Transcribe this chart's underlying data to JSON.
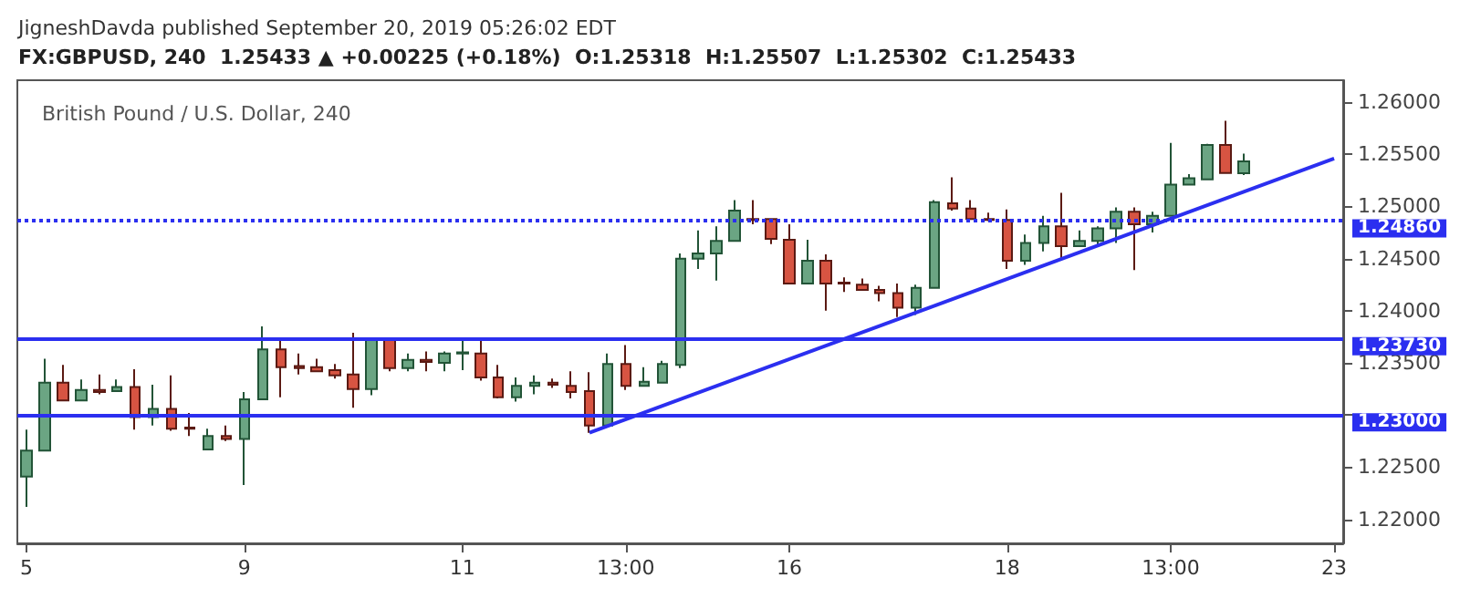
{
  "chart_data": {
    "type": "candlestick",
    "title": "British Pound / U.S. Dollar, 240",
    "annotations": [
      "JigneshDavda published September 20, 2019 05:26:02 EDT",
      "FX:GBPUSD, 240  1.25433 ▲ +0.00225 (+0.18%)  O:1.25318  H:1.25507  L:1.25302  C:1.25433"
    ],
    "categories": [
      "5",
      null,
      null,
      null,
      null,
      null,
      null,
      null,
      null,
      null,
      null,
      null,
      "9",
      null,
      null,
      null,
      null,
      null,
      null,
      null,
      null,
      null,
      null,
      null,
      "11",
      null,
      null,
      null,
      null,
      null,
      null,
      null,
      null,
      "13:00",
      null,
      null,
      null,
      null,
      null,
      null,
      null,
      null,
      "16",
      null,
      null,
      null,
      null,
      null,
      null,
      null,
      null,
      null,
      null,
      null,
      "18",
      null,
      null,
      null,
      null,
      null,
      null,
      null,
      null,
      "13:00",
      null,
      null,
      null,
      null,
      null,
      null,
      null,
      null,
      "23"
    ],
    "ohlc": [
      [
        1.2241,
        1.2286,
        1.2212,
        1.2266
      ],
      [
        1.2266,
        1.2354,
        1.2266,
        1.2331
      ],
      [
        1.2331,
        1.2348,
        1.2314,
        1.2314
      ],
      [
        1.2314,
        1.2334,
        1.2314,
        1.2324
      ],
      [
        1.2324,
        1.2339,
        1.232,
        1.2322
      ],
      [
        1.2323,
        1.2334,
        1.2323,
        1.2327
      ],
      [
        1.2327,
        1.2344,
        1.2286,
        1.2298
      ],
      [
        1.2298,
        1.2329,
        1.229,
        1.2306
      ],
      [
        1.2306,
        1.2338,
        1.2285,
        1.2287
      ],
      [
        1.2288,
        1.2302,
        1.228,
        1.2287
      ],
      [
        1.2267,
        1.2287,
        1.2267,
        1.228
      ],
      [
        1.228,
        1.229,
        1.2275,
        1.2277
      ],
      [
        1.2277,
        1.2322,
        1.2233,
        1.2315
      ],
      [
        1.2315,
        1.2385,
        1.2315,
        1.2363
      ],
      [
        1.2363,
        1.2374,
        1.2317,
        1.2346
      ],
      [
        1.2347,
        1.2359,
        1.2339,
        1.2345
      ],
      [
        1.2346,
        1.2354,
        1.2341,
        1.2342
      ],
      [
        1.2343,
        1.2349,
        1.2335,
        1.2338
      ],
      [
        1.2339,
        1.2379,
        1.2307,
        1.2325
      ],
      [
        1.2325,
        1.2373,
        1.2319,
        1.2373
      ],
      [
        1.2373,
        1.2373,
        1.2342,
        1.2345
      ],
      [
        1.2345,
        1.2359,
        1.2342,
        1.2353
      ],
      [
        1.2353,
        1.2361,
        1.2342,
        1.2351
      ],
      [
        1.235,
        1.2361,
        1.2342,
        1.2359
      ],
      [
        1.2359,
        1.2371,
        1.2343,
        1.236
      ],
      [
        1.2359,
        1.2371,
        1.2333,
        1.2336
      ],
      [
        1.2336,
        1.2348,
        1.2316,
        1.2317
      ],
      [
        1.2317,
        1.2336,
        1.2313,
        1.2328
      ],
      [
        1.2328,
        1.2338,
        1.232,
        1.2331
      ],
      [
        1.2331,
        1.2335,
        1.2326,
        1.2329
      ],
      [
        1.2328,
        1.2342,
        1.2316,
        1.2322
      ],
      [
        1.2323,
        1.2341,
        1.2283,
        1.229
      ],
      [
        1.229,
        1.2359,
        1.2288,
        1.2349
      ],
      [
        1.2349,
        1.2367,
        1.2324,
        1.2328
      ],
      [
        1.2328,
        1.2346,
        1.2328,
        1.2332
      ],
      [
        1.2331,
        1.2352,
        1.2331,
        1.2349
      ],
      [
        1.2348,
        1.2455,
        1.2345,
        1.245
      ],
      [
        1.245,
        1.2477,
        1.244,
        1.2455
      ],
      [
        1.2455,
        1.2481,
        1.2429,
        1.2467
      ],
      [
        1.2467,
        1.2506,
        1.2467,
        1.2496
      ],
      [
        1.2488,
        1.2506,
        1.2483,
        1.2487
      ],
      [
        1.2488,
        1.2488,
        1.2464,
        1.2469
      ],
      [
        1.2468,
        1.2483,
        1.2426,
        1.2426
      ],
      [
        1.2426,
        1.2468,
        1.2426,
        1.2448
      ],
      [
        1.2448,
        1.2454,
        1.24,
        1.2426
      ],
      [
        1.2427,
        1.2432,
        1.2418,
        1.2426
      ],
      [
        1.2425,
        1.2431,
        1.242,
        1.242
      ],
      [
        1.242,
        1.2424,
        1.2409,
        1.2417
      ],
      [
        1.2417,
        1.2426,
        1.2394,
        1.2403
      ],
      [
        1.2403,
        1.2425,
        1.2396,
        1.2422
      ],
      [
        1.2422,
        1.2506,
        1.2421,
        1.2504
      ],
      [
        1.2503,
        1.2528,
        1.2496,
        1.2498
      ],
      [
        1.2498,
        1.2506,
        1.2487,
        1.2488
      ],
      [
        1.2488,
        1.2494,
        1.2486,
        1.2487
      ],
      [
        1.2487,
        1.2497,
        1.244,
        1.2448
      ],
      [
        1.2448,
        1.2473,
        1.2444,
        1.2465
      ],
      [
        1.2465,
        1.2491,
        1.2457,
        1.2481
      ],
      [
        1.2481,
        1.2513,
        1.2448,
        1.2462
      ],
      [
        1.2462,
        1.2477,
        1.2462,
        1.2467
      ],
      [
        1.2467,
        1.2481,
        1.2462,
        1.2479
      ],
      [
        1.2479,
        1.2499,
        1.2465,
        1.2495
      ],
      [
        1.2495,
        1.2499,
        1.2439,
        1.2483
      ],
      [
        1.2483,
        1.2495,
        1.2475,
        1.2491
      ],
      [
        1.2491,
        1.2561,
        1.2491,
        1.2521
      ],
      [
        1.2521,
        1.2531,
        1.252,
        1.2527
      ],
      [
        1.2526,
        1.256,
        1.2526,
        1.2559
      ],
      [
        1.2559,
        1.2582,
        1.2532,
        1.2532
      ],
      [
        1.25318,
        1.25507,
        1.25302,
        1.25433
      ],
      null,
      null,
      null,
      null,
      null
    ],
    "series": [
      {
        "type": "line",
        "color": "#2b2ff0",
        "values": [
          null,
          null,
          null,
          null,
          null,
          null,
          null,
          null,
          null,
          null,
          null,
          null,
          null,
          null,
          null,
          null,
          null,
          null,
          null,
          null,
          null,
          null,
          null,
          null,
          null,
          null,
          null,
          null,
          null,
          null,
          null,
          1.2283,
          null,
          null,
          null,
          null,
          null,
          null,
          null,
          null,
          null,
          null,
          null,
          null,
          null,
          null,
          null,
          null,
          null,
          null,
          null,
          null,
          null,
          null,
          null,
          null,
          null,
          null,
          null,
          null,
          null,
          null,
          null,
          null,
          null,
          null,
          null,
          null,
          null,
          null,
          null,
          null,
          1.2546
        ]
      }
    ],
    "ref_lines": [
      {
        "axis": "y",
        "value": 1.2486,
        "label": "1.24860",
        "color": "#2b2ff0",
        "line_style": "dotted"
      },
      {
        "axis": "y",
        "value": 1.2373,
        "label": "1.23730",
        "color": "#2b2ff0",
        "line_style": "solid"
      },
      {
        "axis": "y",
        "value": 1.23,
        "label": "1.23000",
        "color": "#2b2ff0",
        "line_style": "solid"
      }
    ],
    "ylim": [
      1.2177,
      1.2621
    ],
    "yticks": [
      {
        "value": 1.22,
        "label": "1.22000"
      },
      {
        "value": 1.225,
        "label": "1.22500"
      },
      {
        "value": 1.23,
        "label": null
      },
      {
        "value": 1.235,
        "label": "1.23500"
      },
      {
        "value": 1.24,
        "label": "1.24000"
      },
      {
        "value": 1.245,
        "label": "1.24500"
      },
      {
        "value": 1.25,
        "label": "1.25000"
      },
      {
        "value": 1.255,
        "label": "1.25500"
      },
      {
        "value": 1.26,
        "label": "1.26000"
      }
    ],
    "grid": false
  }
}
